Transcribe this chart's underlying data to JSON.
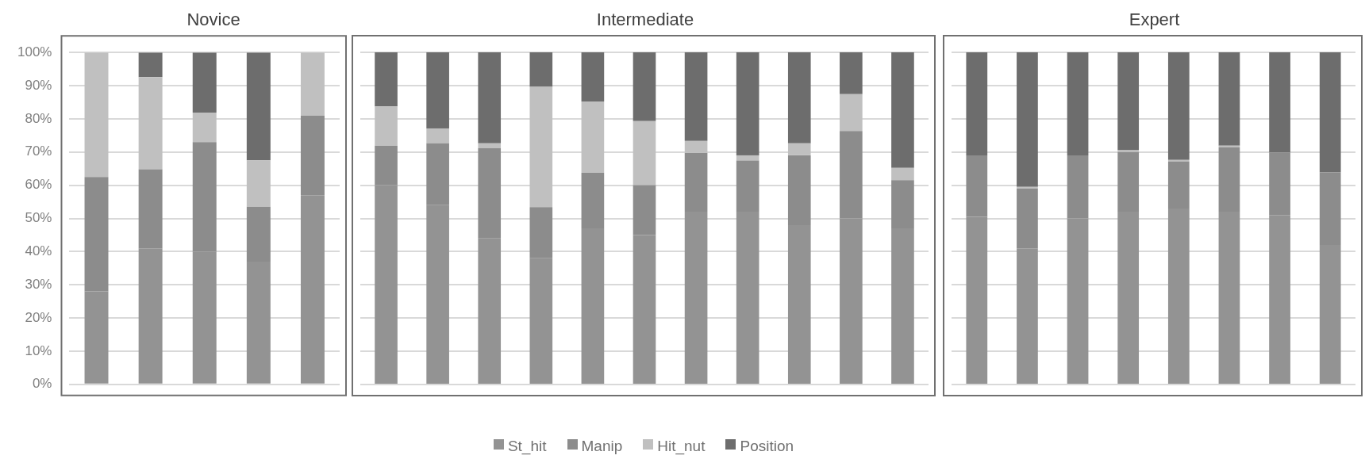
{
  "chart_data": [
    {
      "type": "bar",
      "title": "Novice",
      "stacked": true,
      "categories": [
        null,
        null,
        null,
        null,
        null
      ],
      "ylim": [
        0,
        100
      ],
      "yticks": [
        {
          "value": 0,
          "label": "0%"
        },
        {
          "value": 10,
          "label": "10%"
        },
        {
          "value": 20,
          "label": "20%"
        },
        {
          "value": 30,
          "label": "30%"
        },
        {
          "value": 40,
          "label": "40%"
        },
        {
          "value": 50,
          "label": "50%"
        },
        {
          "value": 60,
          "label": "60%"
        },
        {
          "value": 70,
          "label": "70%"
        },
        {
          "value": 80,
          "label": "80%"
        },
        {
          "value": 90,
          "label": "90%"
        },
        {
          "value": 100,
          "label": "100%"
        }
      ],
      "grid": "y",
      "tick_labels": "y",
      "series": [
        {
          "color": "#939393",
          "values": [
            28,
            41,
            40,
            37,
            57
          ]
        },
        {
          "color": "#8c8c8c",
          "values": [
            34.5,
            23.8,
            33,
            16.5,
            24
          ]
        },
        {
          "color": "#c0c0c0",
          "values": [
            37.5,
            27.8,
            8.9,
            14,
            19
          ]
        },
        {
          "color": "#6d6d6d",
          "values": [
            0,
            7.4,
            18.1,
            32.5,
            0
          ]
        }
      ]
    },
    {
      "type": "bar",
      "title": "Intermediate",
      "stacked": true,
      "categories": [
        null,
        null,
        null,
        null,
        null,
        null,
        null,
        null,
        null,
        null,
        null
      ],
      "ylim": [
        0,
        100
      ],
      "grid": "y",
      "tick_labels": false,
      "legend": "bottom",
      "series": [
        {
          "name": "St_hit",
          "color": "#939393",
          "values": [
            60,
            54,
            44,
            38,
            47,
            45,
            52,
            52,
            48,
            50,
            47
          ]
        },
        {
          "name": "Manip",
          "color": "#8c8c8c",
          "values": [
            11.9,
            18.6,
            27.1,
            15.4,
            16.7,
            15,
            17.7,
            15.4,
            21,
            26.3,
            14.5
          ]
        },
        {
          "name": "Hit_nut",
          "color": "#c0c0c0",
          "values": [
            11.8,
            4.5,
            1.5,
            36.2,
            21.5,
            19.3,
            3.6,
            1.6,
            3.6,
            11.1,
            3.7
          ]
        },
        {
          "name": "Position",
          "color": "#6d6d6d",
          "values": [
            16.3,
            22.9,
            27.4,
            10.4,
            14.8,
            20.7,
            26.7,
            31,
            27.4,
            12.6,
            34.8
          ]
        }
      ]
    },
    {
      "type": "bar",
      "title": "Expert",
      "stacked": true,
      "categories": [
        null,
        null,
        null,
        null,
        null,
        null,
        null,
        null
      ],
      "ylim": [
        0,
        100
      ],
      "grid": "y",
      "tick_labels": false,
      "series": [
        {
          "color": "#939393",
          "values": [
            50.5,
            41,
            50,
            52,
            53,
            52,
            51,
            42
          ]
        },
        {
          "color": "#8c8c8c",
          "values": [
            18.5,
            18,
            19,
            18,
            14.1,
            19.4,
            18.8,
            21.9
          ]
        },
        {
          "color": "#c0c0c0",
          "values": [
            0,
            0.5,
            0,
            0.5,
            0.5,
            0.5,
            0,
            0
          ]
        },
        {
          "color": "#6d6d6d",
          "values": [
            31,
            40.7,
            31,
            29.5,
            32.4,
            28.1,
            30.2,
            36.1
          ]
        }
      ]
    }
  ]
}
